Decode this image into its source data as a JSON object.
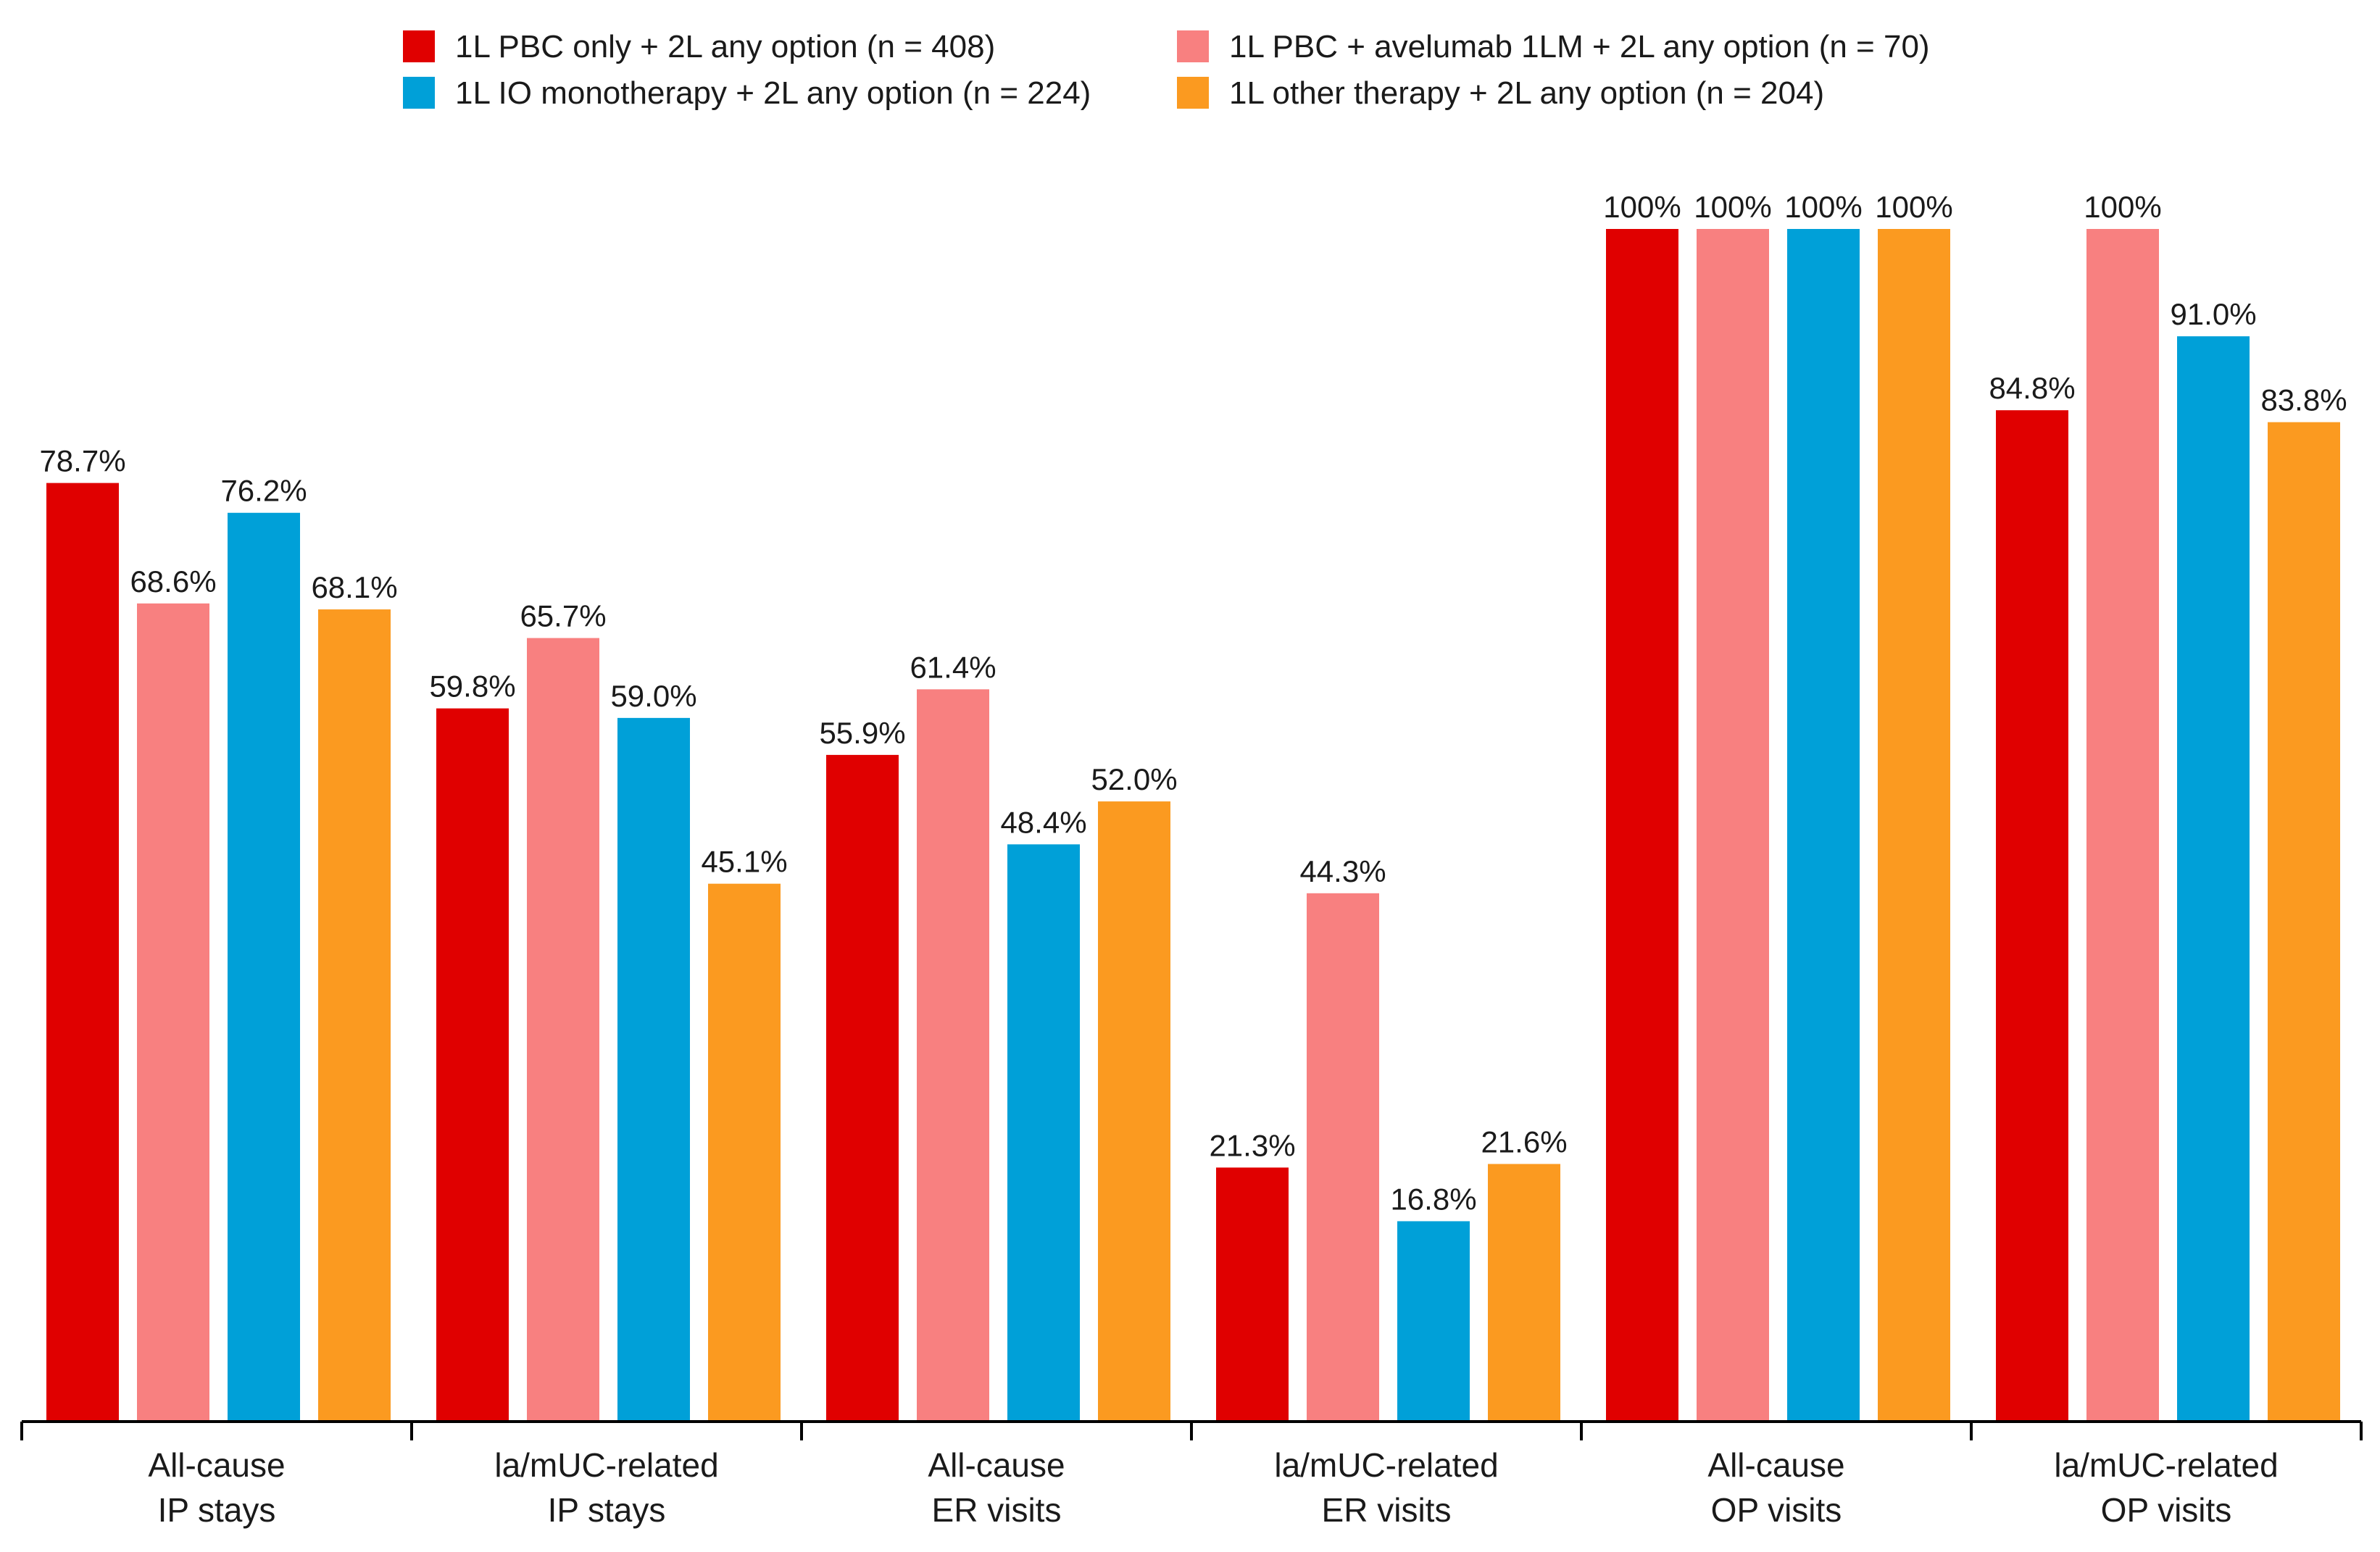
{
  "chart_data": {
    "type": "bar",
    "title": "",
    "xlabel": "",
    "ylabel": "",
    "ylim": [
      0,
      100
    ],
    "grid": false,
    "legend_position": "top",
    "categories": [
      [
        "All-cause",
        "IP stays"
      ],
      [
        "la/mUC-related",
        "IP stays"
      ],
      [
        "All-cause",
        "ER visits"
      ],
      [
        "la/mUC-related",
        "ER visits"
      ],
      [
        "All-cause",
        "OP visits"
      ],
      [
        "la/mUC-related",
        "OP visits"
      ]
    ],
    "series": [
      {
        "name": "1L PBC only + 2L any option (n = 408)",
        "color": "#e00000",
        "values": [
          78.7,
          59.8,
          55.9,
          21.3,
          100,
          84.8
        ],
        "labels": [
          "78.7%",
          "59.8%",
          "55.9%",
          "21.3%",
          "100%",
          "84.8%"
        ]
      },
      {
        "name": "1L PBC + avelumab 1LM + 2L any option (n = 70)",
        "color": "#f88080",
        "values": [
          68.6,
          65.7,
          61.4,
          44.3,
          100,
          100
        ],
        "labels": [
          "68.6%",
          "65.7%",
          "61.4%",
          "44.3%",
          "100%",
          "100%"
        ]
      },
      {
        "name": "1L IO monotherapy + 2L any option (n = 224)",
        "color": "#00a0d8",
        "values": [
          76.2,
          59.0,
          48.4,
          16.8,
          100,
          91.0
        ],
        "labels": [
          "76.2%",
          "59.0%",
          "48.4%",
          "16.8%",
          "100%",
          "91.0%"
        ]
      },
      {
        "name": "1L other therapy + 2L any option (n = 204)",
        "color": "#fb9a20",
        "values": [
          68.1,
          45.1,
          52.0,
          21.6,
          100,
          83.8
        ],
        "labels": [
          "68.1%",
          "45.1%",
          "52.0%",
          "21.6%",
          "100%",
          "83.8%"
        ]
      }
    ]
  }
}
